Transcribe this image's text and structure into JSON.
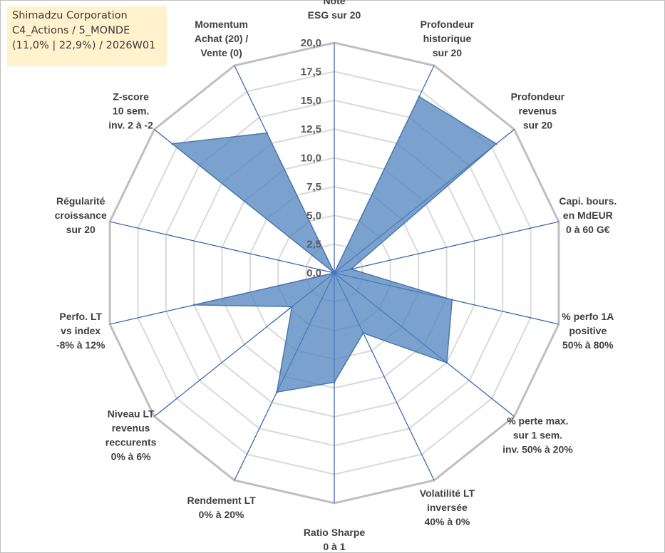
{
  "info_box": {
    "line1": "Shimadzu Corporation",
    "line2": "C4_Actions / 5_MONDE",
    "line3": "(11,0% | 22,9%) / 2026W01"
  },
  "chart_data": {
    "type": "radar",
    "title": "",
    "rmin": 0,
    "rmax": 20,
    "ticks": [
      "0,0",
      "2,5",
      "5,0",
      "7,5",
      "10,0",
      "12,5",
      "15,0",
      "17,5",
      "20,0"
    ],
    "series_color": "#4f81bd",
    "axes": [
      {
        "label": [
          "Note",
          "ESG sur 20"
        ],
        "value": 0
      },
      {
        "label": [
          "Profondeur",
          "historique",
          "sur 20"
        ],
        "value": 17
      },
      {
        "label": [
          "Profondeur",
          "revenus",
          "sur 20"
        ],
        "value": 18
      },
      {
        "label": [
          "Capi. bours.",
          "en MdEUR",
          "0 à 60 G€"
        ],
        "value": 1.5
      },
      {
        "label": [
          "% perfo 1A",
          "positive",
          "50% à 80%"
        ],
        "value": 10.5
      },
      {
        "label": [
          "% perte max.",
          "sur 1 sem.",
          "inv. 50% à 20%"
        ],
        "value": 12.5
      },
      {
        "label": [
          "Volatilité LT",
          "inversée",
          "40% à 0%"
        ],
        "value": 5.8
      },
      {
        "label": [
          "Ratio Sharpe",
          "0 à 1"
        ],
        "value": 9.5
      },
      {
        "label": [
          "Rendement LT",
          "0% à 20%"
        ],
        "value": 11.5
      },
      {
        "label": [
          "Niveau LT",
          "revenus",
          "reccurents",
          "0% à 6%"
        ],
        "value": 4.7
      },
      {
        "label": [
          "Perfo. LT",
          "vs index",
          "-8% à 12%"
        ],
        "value": 12.5
      },
      {
        "label": [
          "Régularité",
          "croissance",
          "sur 20"
        ],
        "value": 0
      },
      {
        "label": [
          "Z-score",
          "10 sem.",
          "inv. 2 à -2"
        ],
        "value": 18
      },
      {
        "label": [
          "Momentum",
          "Achat (20) /",
          "Vente (0)"
        ],
        "value": 13.5
      }
    ]
  }
}
